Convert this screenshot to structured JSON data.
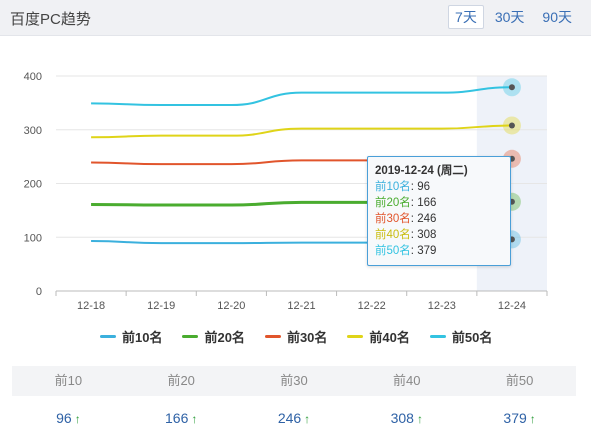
{
  "header": {
    "title": "百度PC趋势",
    "ranges": [
      "7天",
      "30天",
      "90天"
    ],
    "active_range": "7天"
  },
  "chart_data": {
    "type": "line",
    "categories": [
      "12-18",
      "12-19",
      "12-20",
      "12-21",
      "12-22",
      "12-23",
      "12-24"
    ],
    "ylim": [
      0,
      400
    ],
    "yticks": [
      0,
      100,
      200,
      300,
      400
    ],
    "grid": true,
    "highlighted_category": "12-24",
    "series": [
      {
        "name": "前10名",
        "color": "#3bb0dd",
        "values": [
          93,
          89,
          89,
          90,
          90,
          90,
          96
        ]
      },
      {
        "name": "前20名",
        "color": "#4aac2f",
        "values": [
          161,
          160,
          160,
          165,
          165,
          165,
          166
        ]
      },
      {
        "name": "前30名",
        "color": "#e1552c",
        "values": [
          239,
          236,
          236,
          243,
          243,
          243,
          246
        ]
      },
      {
        "name": "前40名",
        "color": "#dfd418",
        "values": [
          286,
          289,
          289,
          302,
          302,
          302,
          308
        ]
      },
      {
        "name": "前50名",
        "color": "#33c3e1",
        "values": [
          349,
          346,
          346,
          369,
          369,
          369,
          379
        ]
      }
    ]
  },
  "tooltip": {
    "title": "2019-12-24 (周二)",
    "rows": [
      {
        "label": "前10名",
        "value": "96",
        "color": "#3bb0dd"
      },
      {
        "label": "前20名",
        "value": "166",
        "color": "#4aac2f"
      },
      {
        "label": "前30名",
        "value": "246",
        "color": "#e1552c"
      },
      {
        "label": "前40名",
        "value": "308",
        "color": "#c9bd10"
      },
      {
        "label": "前50名",
        "value": "379",
        "color": "#33c3e1"
      }
    ]
  },
  "summary": {
    "headers": [
      "前10",
      "前20",
      "前30",
      "前40",
      "前50"
    ],
    "values": [
      "96",
      "166",
      "246",
      "308",
      "379"
    ],
    "trend_icon": "up-arrow-icon",
    "trend_glyph": "↑"
  }
}
